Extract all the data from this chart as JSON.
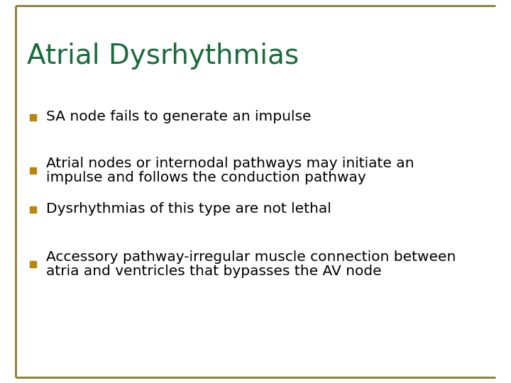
{
  "title": "Atrial Dysrhythmias",
  "title_color": "#1a6b3c",
  "title_fontsize": 28,
  "background_color": "#ffffff",
  "border_color": "#8b7a2e",
  "bullet_color": "#b8860b",
  "bullet_items": [
    [
      "SA node fails to generate an impulse"
    ],
    [
      "Atrial nodes or internodal pathways may initiate an",
      "impulse and follows the conduction pathway"
    ],
    [
      "Dysrhythmias of this type are not lethal"
    ],
    [
      "Accessory pathway-irregular muscle connection between",
      "atria and ventricles that bypasses the AV node"
    ]
  ],
  "text_color": "#000000",
  "text_fontsize": 14.5,
  "font_family": "DejaVu Sans",
  "figsize": [
    7.2,
    5.4
  ],
  "dpi": 100
}
